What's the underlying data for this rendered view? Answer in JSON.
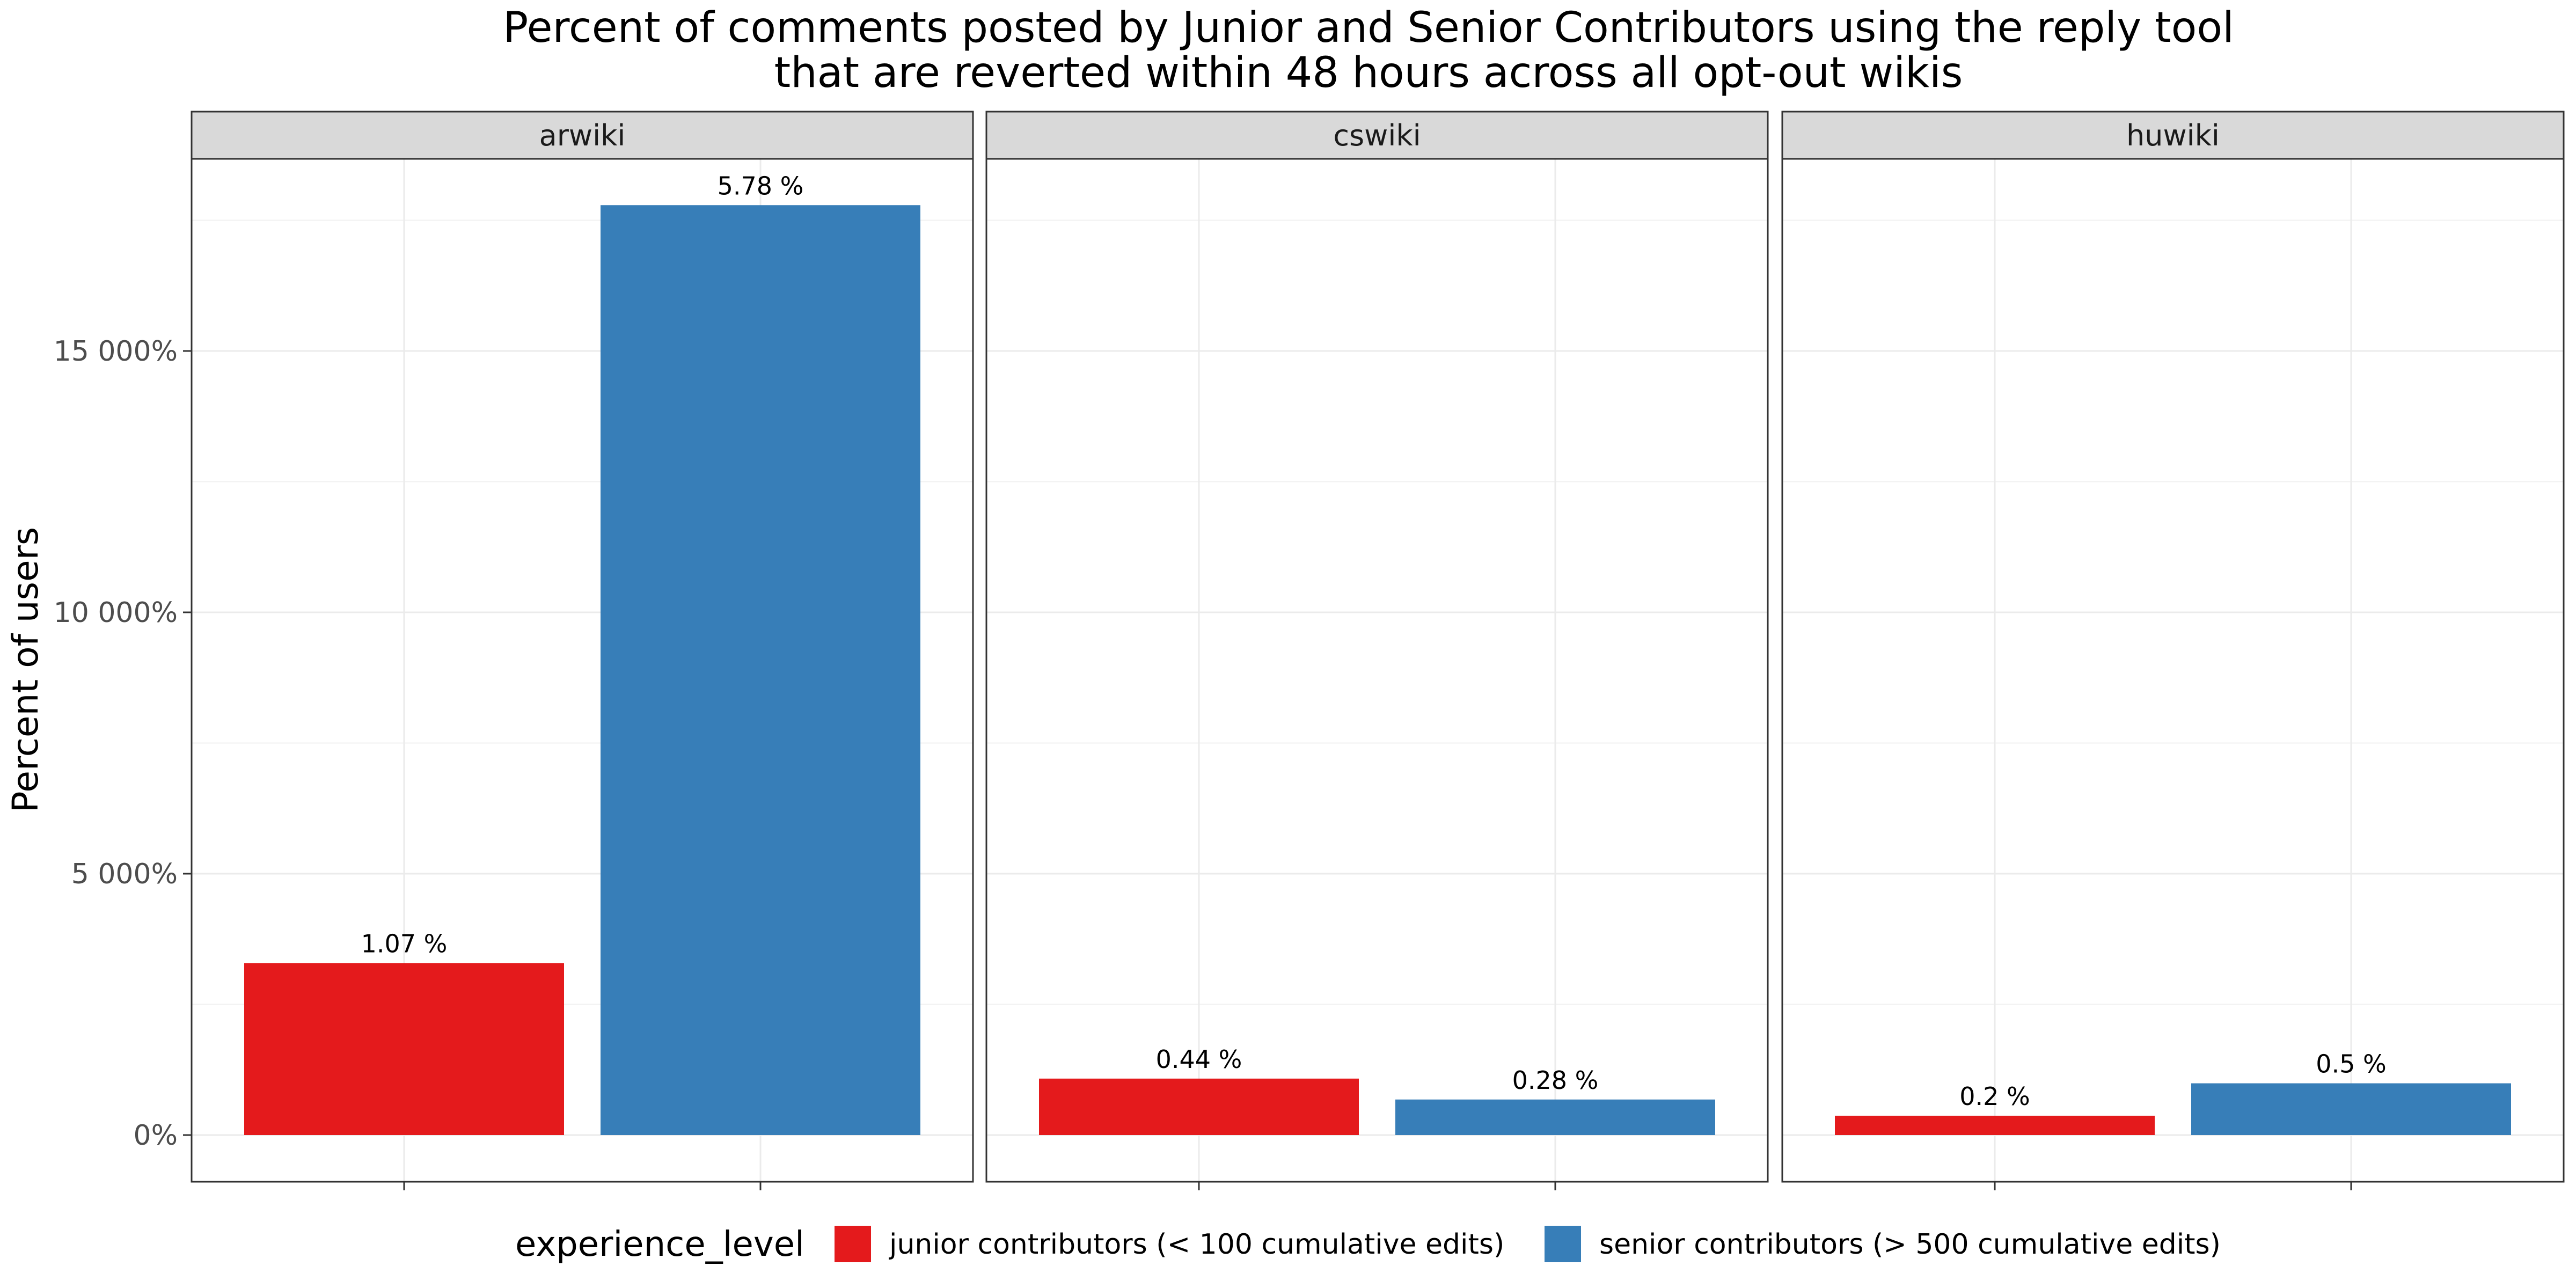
{
  "chart_data": {
    "type": "bar",
    "title": "Percent of comments posted by Junior and Senior Contributors using the reply tool",
    "subtitle": "that are reverted within 48 hours across all opt-out wikis",
    "ylabel": "Percent of users",
    "xlabel": "",
    "ylim": [
      0,
      18700
    ],
    "yticks": [
      0,
      5000,
      10000,
      15000
    ],
    "ytick_labels": [
      "0%",
      "5 000%",
      "10 000%",
      "15 000%"
    ],
    "grid": true,
    "legend_position": "bottom",
    "legend_title": "experience_level",
    "series": [
      {
        "name": "junior contributors (< 100 cumulative edits)",
        "color": "#e41a1c"
      },
      {
        "name": "senior contributors (> 500 cumulative edits)",
        "color": "#377eb8"
      }
    ],
    "facets": [
      {
        "name": "arwiki",
        "values": [
          3290,
          17790
        ],
        "labels": [
          "1.07 %",
          "5.78 %"
        ]
      },
      {
        "name": "cswiki",
        "values": [
          1080,
          680
        ],
        "labels": [
          "0.44 %",
          "0.28 %"
        ]
      },
      {
        "name": "huwiki",
        "values": [
          370,
          990
        ],
        "labels": [
          "0.2 %",
          "0.5 %"
        ]
      }
    ]
  }
}
